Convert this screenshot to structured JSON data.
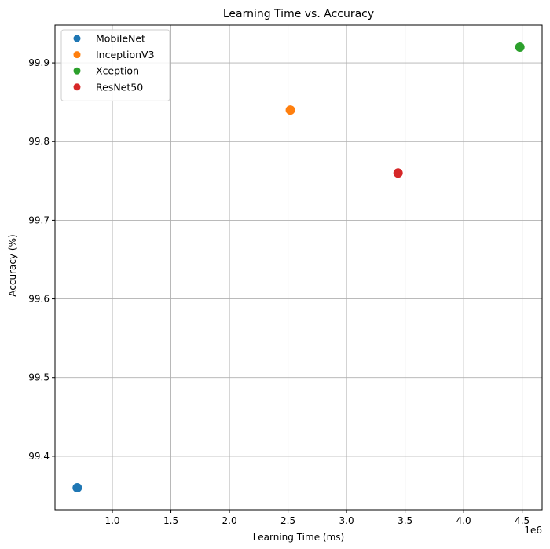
{
  "chart_data": {
    "type": "scatter",
    "title": "Learning Time vs. Accuracy",
    "xlabel": "Learning Time (ms)",
    "ylabel": "Accuracy (%)",
    "x_offset_text": "1e6",
    "xlim": [
      0.51,
      4.67
    ],
    "ylim": [
      99.332,
      99.948
    ],
    "x_ticks": [
      1.0,
      1.5,
      2.0,
      2.5,
      3.0,
      3.5,
      4.0,
      4.5
    ],
    "x_tick_labels": [
      "1.0",
      "1.5",
      "2.0",
      "2.5",
      "3.0",
      "3.5",
      "4.0",
      "4.5"
    ],
    "y_ticks": [
      99.4,
      99.5,
      99.6,
      99.7,
      99.8,
      99.9
    ],
    "y_tick_labels": [
      "99.4",
      "99.5",
      "99.6",
      "99.7",
      "99.8",
      "99.9"
    ],
    "grid": true,
    "legend_position": "upper-left",
    "series": [
      {
        "name": "MobileNet",
        "color": "#1f77b4",
        "x": [
          0.7
        ],
        "y": [
          99.36
        ]
      },
      {
        "name": "InceptionV3",
        "color": "#ff7f0e",
        "x": [
          2.52
        ],
        "y": [
          99.84
        ]
      },
      {
        "name": "Xception",
        "color": "#2ca02c",
        "x": [
          4.48
        ],
        "y": [
          99.92
        ]
      },
      {
        "name": "ResNet50",
        "color": "#d62728",
        "x": [
          3.44
        ],
        "y": [
          99.76
        ]
      }
    ]
  }
}
